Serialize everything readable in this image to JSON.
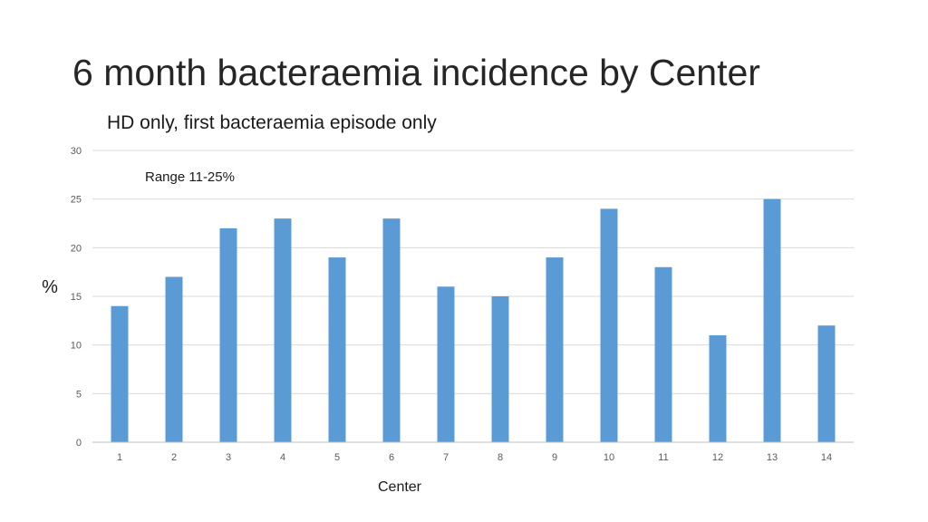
{
  "title": "6 month bacteraemia incidence by Center",
  "subtitle": "HD only, first bacteraemia episode only",
  "chart_data": {
    "type": "bar",
    "categories": [
      "1",
      "2",
      "3",
      "4",
      "5",
      "6",
      "7",
      "8",
      "9",
      "10",
      "11",
      "12",
      "13",
      "14"
    ],
    "values": [
      14,
      17,
      22,
      23,
      19,
      23,
      16,
      15,
      19,
      24,
      18,
      11,
      25,
      12
    ],
    "xlabel": "Center",
    "ylabel": "%",
    "ylim": [
      0,
      30
    ],
    "yticks": [
      0,
      5,
      10,
      15,
      20,
      25,
      30
    ],
    "annotation": "Range 11-25%",
    "bar_color": "#5b9bd5",
    "grid": true,
    "legend": "none"
  }
}
